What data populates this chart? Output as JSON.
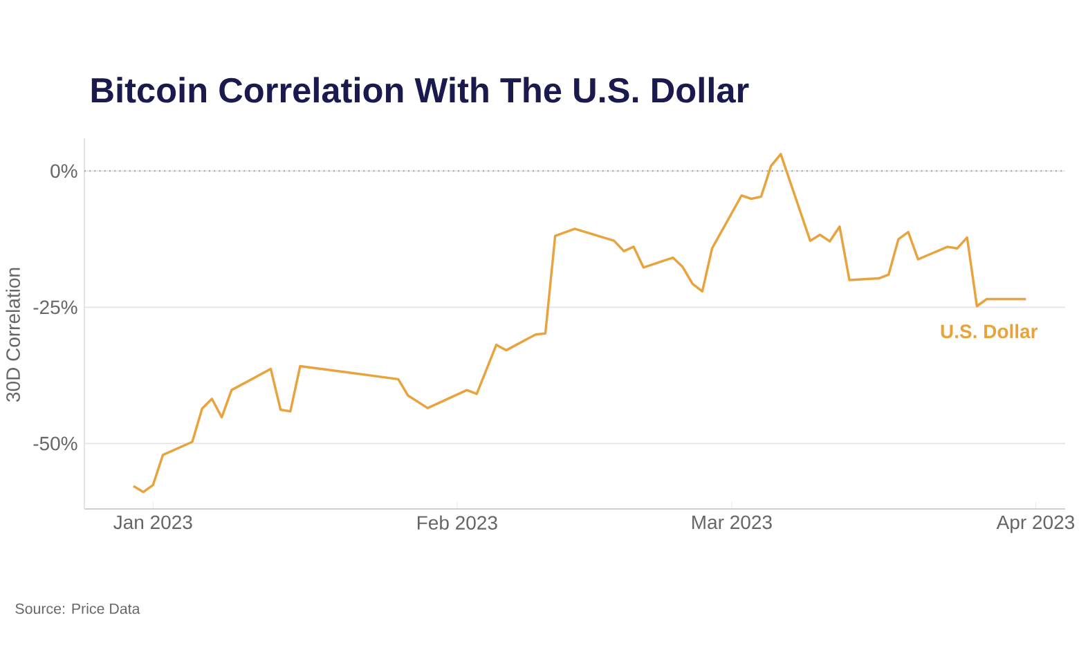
{
  "chart_data": {
    "type": "line",
    "title": "Bitcoin Correlation With The U.S. Dollar",
    "ylabel": "30D Correlation",
    "annotations": [
      "Source: Price Data"
    ],
    "x": [
      "2022-12-30",
      "2022-12-31",
      "2023-01-01",
      "2023-01-02",
      "2023-01-05",
      "2023-01-06",
      "2023-01-07",
      "2023-01-08",
      "2023-01-09",
      "2023-01-13",
      "2023-01-14",
      "2023-01-15",
      "2023-01-16",
      "2023-01-26",
      "2023-01-27",
      "2023-01-29",
      "2023-02-02",
      "2023-02-03",
      "2023-02-05",
      "2023-02-06",
      "2023-02-09",
      "2023-02-10",
      "2023-02-11",
      "2023-02-13",
      "2023-02-17",
      "2023-02-18",
      "2023-02-19",
      "2023-02-20",
      "2023-02-23",
      "2023-02-24",
      "2023-02-25",
      "2023-02-26",
      "2023-02-27",
      "2023-03-02",
      "2023-03-03",
      "2023-03-04",
      "2023-03-05",
      "2023-03-06",
      "2023-03-09",
      "2023-03-10",
      "2023-03-11",
      "2023-03-12",
      "2023-03-13",
      "2023-03-16",
      "2023-03-17",
      "2023-03-18",
      "2023-03-19",
      "2023-03-20",
      "2023-03-23",
      "2023-03-24",
      "2023-03-25",
      "2023-03-26",
      "2023-03-27",
      "2023-03-31"
    ],
    "series": [
      {
        "name": "U.S. Dollar",
        "color": "#e8a33d",
        "values": [
          -57.8,
          -58.9,
          -57.6,
          -52.1,
          -49.7,
          -43.6,
          -41.8,
          -45.2,
          -40.2,
          -36.3,
          -43.8,
          -44.1,
          -35.8,
          -38.2,
          -41.2,
          -43.5,
          -40.2,
          -40.9,
          -31.9,
          -32.9,
          -30.0,
          -29.8,
          -11.9,
          -10.6,
          -12.8,
          -14.7,
          -13.9,
          -17.7,
          -15.9,
          -17.6,
          -20.7,
          -22.1,
          -14.2,
          -4.5,
          -5.1,
          -4.7,
          0.9,
          3.1,
          -12.8,
          -11.7,
          -12.9,
          -10.2,
          -20.0,
          -19.7,
          -19.0,
          -12.5,
          -11.2,
          -16.2,
          -13.9,
          -14.2,
          -12.2,
          -24.8,
          -23.5,
          -23.5
        ]
      }
    ],
    "xlim": [
      "2022-12-25",
      "2023-04-04"
    ],
    "xticks": [
      {
        "value": "2023-01-01",
        "label": "Jan 2023"
      },
      {
        "value": "2023-02-01",
        "label": "Feb 2023"
      },
      {
        "value": "2023-03-01",
        "label": "Mar 2023"
      },
      {
        "value": "2023-04-01",
        "label": "Apr 2023"
      }
    ],
    "ylim": [
      -62,
      6
    ],
    "yticks": [
      {
        "value": 0,
        "label": "0%"
      },
      {
        "value": -25,
        "label": "-25%"
      },
      {
        "value": -50,
        "label": "-50%"
      }
    ],
    "grid": "y",
    "ref_lines": [
      {
        "axis": "y",
        "value": 0,
        "color": "#999999",
        "line_style": "dotted"
      }
    ]
  }
}
